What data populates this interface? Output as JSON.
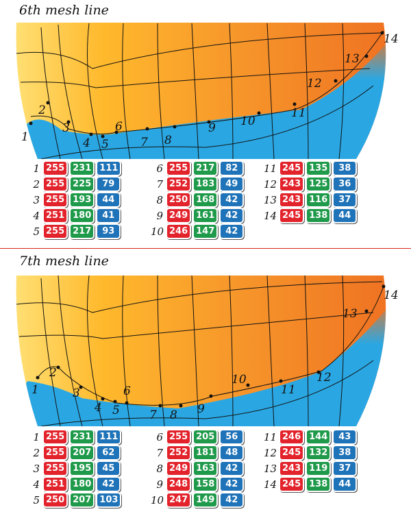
{
  "panels": [
    {
      "title": "6th mesh line",
      "point_labels": [
        "1",
        "2",
        "3",
        "4",
        "5",
        "6",
        "7",
        "8",
        "9",
        "10",
        "11",
        "12",
        "13",
        "14"
      ],
      "colors": {
        "yellow": "#ffe26a",
        "orange": "#f07b22",
        "blue": "#2aa7e3"
      },
      "entries": [
        {
          "n": "1",
          "r": "255",
          "g": "231",
          "b": "111"
        },
        {
          "n": "2",
          "r": "255",
          "g": "225",
          "b": "79"
        },
        {
          "n": "3",
          "r": "255",
          "g": "193",
          "b": "44"
        },
        {
          "n": "4",
          "r": "251",
          "g": "180",
          "b": "41"
        },
        {
          "n": "5",
          "r": "255",
          "g": "217",
          "b": "93"
        },
        {
          "n": "6",
          "r": "255",
          "g": "217",
          "b": "82"
        },
        {
          "n": "7",
          "r": "252",
          "g": "183",
          "b": "49"
        },
        {
          "n": "8",
          "r": "250",
          "g": "168",
          "b": "42"
        },
        {
          "n": "9",
          "r": "249",
          "g": "161",
          "b": "42"
        },
        {
          "n": "10",
          "r": "246",
          "g": "147",
          "b": "42"
        },
        {
          "n": "11",
          "r": "245",
          "g": "135",
          "b": "38"
        },
        {
          "n": "12",
          "r": "243",
          "g": "125",
          "b": "36"
        },
        {
          "n": "13",
          "r": "243",
          "g": "116",
          "b": "37"
        },
        {
          "n": "14",
          "r": "245",
          "g": "138",
          "b": "44"
        }
      ]
    },
    {
      "title": "7th mesh line",
      "point_labels": [
        "1",
        "2",
        "3",
        "4",
        "5",
        "6",
        "7",
        "8",
        "9",
        "10",
        "11",
        "12",
        "13",
        "14"
      ],
      "colors": {
        "yellow": "#ffe26a",
        "orange": "#f07b22",
        "blue": "#2aa7e3"
      },
      "entries": [
        {
          "n": "1",
          "r": "255",
          "g": "231",
          "b": "111"
        },
        {
          "n": "2",
          "r": "255",
          "g": "207",
          "b": "62"
        },
        {
          "n": "3",
          "r": "255",
          "g": "195",
          "b": "45"
        },
        {
          "n": "4",
          "r": "251",
          "g": "180",
          "b": "42"
        },
        {
          "n": "5",
          "r": "250",
          "g": "207",
          "b": "103"
        },
        {
          "n": "6",
          "r": "255",
          "g": "205",
          "b": "56"
        },
        {
          "n": "7",
          "r": "252",
          "g": "181",
          "b": "48"
        },
        {
          "n": "8",
          "r": "249",
          "g": "163",
          "b": "42"
        },
        {
          "n": "9",
          "r": "248",
          "g": "158",
          "b": "42"
        },
        {
          "n": "10",
          "r": "247",
          "g": "149",
          "b": "42"
        },
        {
          "n": "11",
          "r": "246",
          "g": "144",
          "b": "43"
        },
        {
          "n": "12",
          "r": "245",
          "g": "132",
          "b": "38"
        },
        {
          "n": "13",
          "r": "243",
          "g": "119",
          "b": "37"
        },
        {
          "n": "14",
          "r": "245",
          "g": "138",
          "b": "44"
        }
      ]
    }
  ]
}
